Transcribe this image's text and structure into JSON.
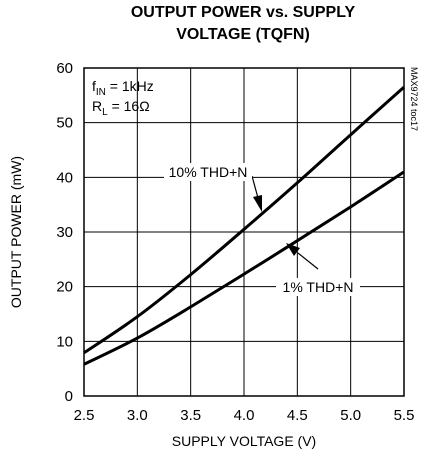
{
  "chart_data": {
    "type": "line",
    "title": [
      "OUTPUT POWER vs. SUPPLY",
      "VOLTAGE (TQFN)"
    ],
    "xlabel": "SUPPLY VOLTAGE (V)",
    "ylabel": "OUTPUT POWER (mW)",
    "xlim": [
      2.5,
      5.5
    ],
    "ylim": [
      0,
      60
    ],
    "xticks": [
      "2.5",
      "3.0",
      "3.5",
      "4.0",
      "4.5",
      "5.0",
      "5.5"
    ],
    "yticks": [
      "0",
      "10",
      "20",
      "30",
      "40",
      "50",
      "60"
    ],
    "grid": true,
    "conditions": {
      "fin_main": "f",
      "fin_sub": "IN",
      "fin_value": " = 1kHz",
      "rl_main": "R",
      "rl_sub": "L",
      "rl_value": " = 16Ω"
    },
    "side_label": "MAX9724 toc17",
    "series": [
      {
        "name": "10% THD+N",
        "x": [
          2.5,
          3.0,
          3.5,
          4.0,
          4.5,
          5.0,
          5.5
        ],
        "y": [
          7.9,
          14.5,
          22.2,
          30.5,
          39.0,
          47.8,
          56.5
        ]
      },
      {
        "name": "1% THD+N",
        "x": [
          2.5,
          3.0,
          3.5,
          4.0,
          4.5,
          5.0,
          5.5
        ],
        "y": [
          5.8,
          10.6,
          16.3,
          22.3,
          28.4,
          34.6,
          41.0
        ]
      }
    ]
  }
}
